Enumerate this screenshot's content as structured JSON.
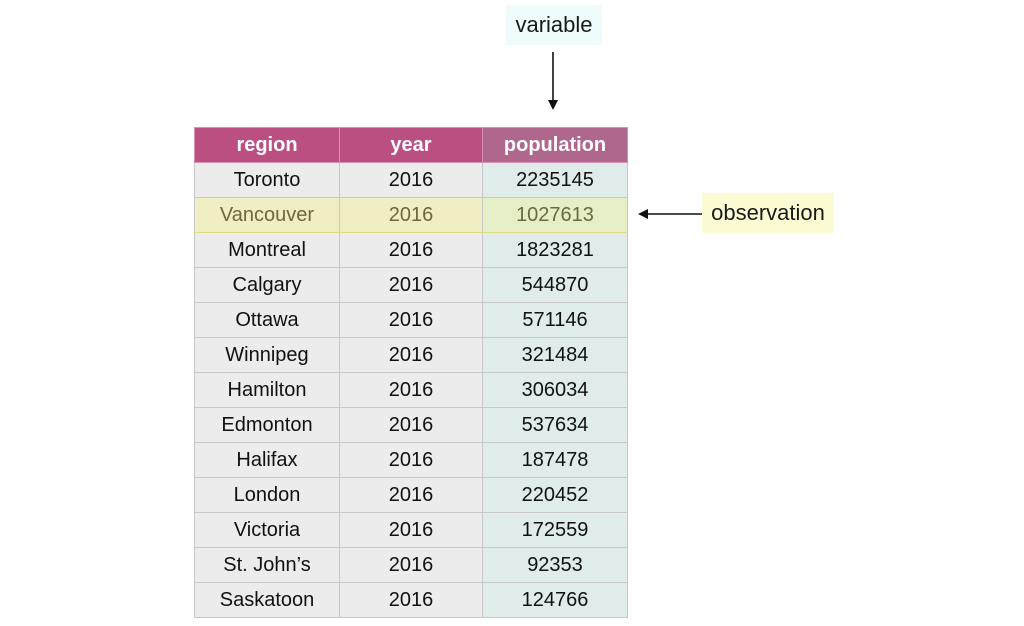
{
  "labels": {
    "variable": "variable",
    "observation": "observation"
  },
  "table": {
    "headers": [
      "region",
      "year",
      "population"
    ],
    "rows": [
      {
        "region": "Toronto",
        "year": "2016",
        "population": "2235145"
      },
      {
        "region": "Vancouver",
        "year": "2016",
        "population": "1027613"
      },
      {
        "region": "Montreal",
        "year": "2016",
        "population": "1823281"
      },
      {
        "region": "Calgary",
        "year": "2016",
        "population": "544870"
      },
      {
        "region": "Ottawa",
        "year": "2016",
        "population": "571146"
      },
      {
        "region": "Winnipeg",
        "year": "2016",
        "population": "321484"
      },
      {
        "region": "Hamilton",
        "year": "2016",
        "population": "306034"
      },
      {
        "region": "Edmonton",
        "year": "2016",
        "population": "537634"
      },
      {
        "region": "Halifax",
        "year": "2016",
        "population": "187478"
      },
      {
        "region": "London",
        "year": "2016",
        "population": "220452"
      },
      {
        "region": "Victoria",
        "year": "2016",
        "population": "172559"
      },
      {
        "region": "St. John’s",
        "year": "2016",
        "population": "92353"
      },
      {
        "region": "Saskatoon",
        "year": "2016",
        "population": "124766"
      }
    ],
    "highlighted_row_index": 1
  },
  "colors": {
    "header_bg": "#bb4f82",
    "variable_label_bg": "#eefcfb",
    "observation_label_bg": "#fdfbd4",
    "highlight_row_bg": "#efefc3",
    "population_column_bg": "#dfecea"
  }
}
